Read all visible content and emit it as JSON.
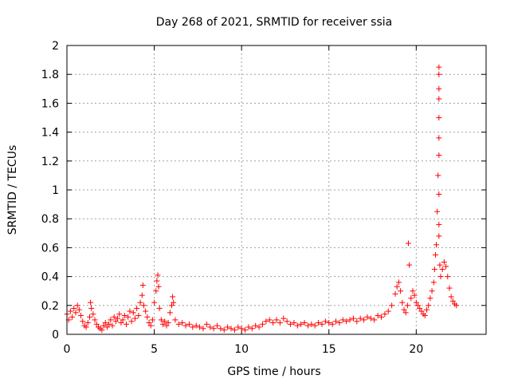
{
  "chart_data": {
    "type": "scatter",
    "title": "Day 268 of 2021, SRMTID for receiver ssia",
    "xlabel": "GPS time / hours",
    "ylabel": "SRMTID / TECUs",
    "xlim": [
      0,
      24
    ],
    "ylim": [
      0,
      2
    ],
    "xticks": [
      0,
      5,
      10,
      15,
      20
    ],
    "xtick_labels": [
      "0",
      "5",
      "10",
      "15",
      "20"
    ],
    "yticks": [
      0,
      0.2,
      0.4,
      0.6,
      0.8,
      1,
      1.2,
      1.4,
      1.6,
      1.8,
      2
    ],
    "ytick_labels": [
      "0",
      "0.2",
      "0.4",
      "0.6",
      "0.8",
      "1",
      "1.2",
      "1.4",
      "1.6",
      "1.8",
      "2"
    ],
    "grid": true,
    "marker": "+",
    "color": "#ff0000",
    "series": [
      {
        "name": "SRMTID",
        "points": [
          [
            0.0,
            0.14
          ],
          [
            0.1,
            0.1
          ],
          [
            0.2,
            0.16
          ],
          [
            0.3,
            0.12
          ],
          [
            0.4,
            0.18
          ],
          [
            0.5,
            0.15
          ],
          [
            0.6,
            0.2
          ],
          [
            0.7,
            0.17
          ],
          [
            0.8,
            0.13
          ],
          [
            0.9,
            0.09
          ],
          [
            1.0,
            0.06
          ],
          [
            1.1,
            0.05
          ],
          [
            1.2,
            0.08
          ],
          [
            1.3,
            0.12
          ],
          [
            1.35,
            0.22
          ],
          [
            1.4,
            0.18
          ],
          [
            1.5,
            0.14
          ],
          [
            1.6,
            0.1
          ],
          [
            1.7,
            0.07
          ],
          [
            1.8,
            0.05
          ],
          [
            1.9,
            0.04
          ],
          [
            2.0,
            0.03
          ],
          [
            2.1,
            0.06
          ],
          [
            2.2,
            0.08
          ],
          [
            2.3,
            0.05
          ],
          [
            2.4,
            0.07
          ],
          [
            2.5,
            0.1
          ],
          [
            2.6,
            0.06
          ],
          [
            2.7,
            0.12
          ],
          [
            2.8,
            0.09
          ],
          [
            2.9,
            0.11
          ],
          [
            3.0,
            0.14
          ],
          [
            3.1,
            0.08
          ],
          [
            3.2,
            0.1
          ],
          [
            3.3,
            0.13
          ],
          [
            3.4,
            0.07
          ],
          [
            3.5,
            0.12
          ],
          [
            3.6,
            0.16
          ],
          [
            3.7,
            0.09
          ],
          [
            3.8,
            0.15
          ],
          [
            3.9,
            0.11
          ],
          [
            4.0,
            0.18
          ],
          [
            4.1,
            0.13
          ],
          [
            4.2,
            0.22
          ],
          [
            4.3,
            0.27
          ],
          [
            4.35,
            0.34
          ],
          [
            4.4,
            0.2
          ],
          [
            4.5,
            0.16
          ],
          [
            4.6,
            0.12
          ],
          [
            4.7,
            0.08
          ],
          [
            4.8,
            0.06
          ],
          [
            4.9,
            0.1
          ],
          [
            5.0,
            0.22
          ],
          [
            5.1,
            0.3
          ],
          [
            5.15,
            0.37
          ],
          [
            5.2,
            0.41
          ],
          [
            5.25,
            0.33
          ],
          [
            5.3,
            0.18
          ],
          [
            5.4,
            0.1
          ],
          [
            5.5,
            0.07
          ],
          [
            5.6,
            0.09
          ],
          [
            5.7,
            0.06
          ],
          [
            5.8,
            0.08
          ],
          [
            5.9,
            0.15
          ],
          [
            6.0,
            0.2
          ],
          [
            6.05,
            0.26
          ],
          [
            6.1,
            0.22
          ],
          [
            6.2,
            0.1
          ],
          [
            6.4,
            0.07
          ],
          [
            6.6,
            0.08
          ],
          [
            6.8,
            0.06
          ],
          [
            7.0,
            0.07
          ],
          [
            7.2,
            0.05
          ],
          [
            7.4,
            0.06
          ],
          [
            7.6,
            0.05
          ],
          [
            7.8,
            0.04
          ],
          [
            8.0,
            0.07
          ],
          [
            8.2,
            0.05
          ],
          [
            8.4,
            0.04
          ],
          [
            8.6,
            0.06
          ],
          [
            8.8,
            0.04
          ],
          [
            9.0,
            0.03
          ],
          [
            9.2,
            0.05
          ],
          [
            9.4,
            0.04
          ],
          [
            9.6,
            0.03
          ],
          [
            9.8,
            0.05
          ],
          [
            10.0,
            0.04
          ],
          [
            10.2,
            0.03
          ],
          [
            10.4,
            0.05
          ],
          [
            10.6,
            0.04
          ],
          [
            10.8,
            0.06
          ],
          [
            11.0,
            0.05
          ],
          [
            11.2,
            0.07
          ],
          [
            11.4,
            0.09
          ],
          [
            11.6,
            0.1
          ],
          [
            11.8,
            0.08
          ],
          [
            12.0,
            0.1
          ],
          [
            12.2,
            0.08
          ],
          [
            12.4,
            0.11
          ],
          [
            12.6,
            0.09
          ],
          [
            12.8,
            0.07
          ],
          [
            13.0,
            0.08
          ],
          [
            13.2,
            0.06
          ],
          [
            13.4,
            0.07
          ],
          [
            13.6,
            0.08
          ],
          [
            13.8,
            0.06
          ],
          [
            14.0,
            0.07
          ],
          [
            14.2,
            0.06
          ],
          [
            14.4,
            0.08
          ],
          [
            14.6,
            0.07
          ],
          [
            14.8,
            0.09
          ],
          [
            15.0,
            0.08
          ],
          [
            15.2,
            0.07
          ],
          [
            15.4,
            0.09
          ],
          [
            15.6,
            0.08
          ],
          [
            15.8,
            0.1
          ],
          [
            16.0,
            0.09
          ],
          [
            16.2,
            0.1
          ],
          [
            16.4,
            0.11
          ],
          [
            16.6,
            0.09
          ],
          [
            16.8,
            0.11
          ],
          [
            17.0,
            0.1
          ],
          [
            17.2,
            0.12
          ],
          [
            17.4,
            0.11
          ],
          [
            17.6,
            0.1
          ],
          [
            17.8,
            0.13
          ],
          [
            18.0,
            0.12
          ],
          [
            18.2,
            0.14
          ],
          [
            18.4,
            0.16
          ],
          [
            18.6,
            0.2
          ],
          [
            18.8,
            0.28
          ],
          [
            18.9,
            0.33
          ],
          [
            19.0,
            0.36
          ],
          [
            19.1,
            0.3
          ],
          [
            19.2,
            0.22
          ],
          [
            19.3,
            0.17
          ],
          [
            19.4,
            0.15
          ],
          [
            19.5,
            0.2
          ],
          [
            19.55,
            0.63
          ],
          [
            19.6,
            0.48
          ],
          [
            19.7,
            0.25
          ],
          [
            19.8,
            0.3
          ],
          [
            19.9,
            0.27
          ],
          [
            20.0,
            0.22
          ],
          [
            20.1,
            0.2
          ],
          [
            20.2,
            0.18
          ],
          [
            20.3,
            0.16
          ],
          [
            20.4,
            0.14
          ],
          [
            20.5,
            0.13
          ],
          [
            20.6,
            0.17
          ],
          [
            20.7,
            0.2
          ],
          [
            20.8,
            0.25
          ],
          [
            20.9,
            0.3
          ],
          [
            21.0,
            0.36
          ],
          [
            21.05,
            0.45
          ],
          [
            21.1,
            0.55
          ],
          [
            21.15,
            0.62
          ],
          [
            21.2,
            0.85
          ],
          [
            21.25,
            1.1
          ],
          [
            21.3,
            1.5
          ],
          [
            21.3,
            1.85
          ],
          [
            21.3,
            1.8
          ],
          [
            21.3,
            1.7
          ],
          [
            21.3,
            1.63
          ],
          [
            21.3,
            1.36
          ],
          [
            21.3,
            1.24
          ],
          [
            21.3,
            0.97
          ],
          [
            21.3,
            0.76
          ],
          [
            21.3,
            0.68
          ],
          [
            21.35,
            0.48
          ],
          [
            21.4,
            0.4
          ],
          [
            21.5,
            0.45
          ],
          [
            21.6,
            0.5
          ],
          [
            21.7,
            0.47
          ],
          [
            21.8,
            0.4
          ],
          [
            21.9,
            0.32
          ],
          [
            22.0,
            0.26
          ],
          [
            22.1,
            0.23
          ],
          [
            22.2,
            0.21
          ],
          [
            22.3,
            0.2
          ]
        ]
      }
    ]
  }
}
